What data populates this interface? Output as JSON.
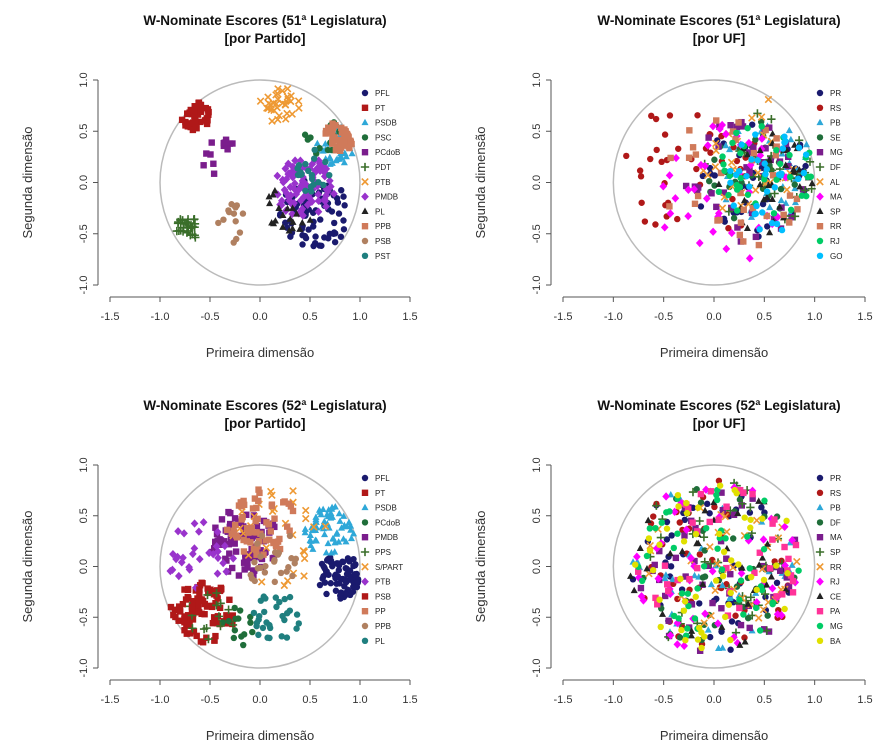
{
  "colors": {
    "palette": [
      "#1a1a6e",
      "#b01818",
      "#2ea8d8",
      "#1f6e3a",
      "#7a1d8c",
      "#3a6e2a",
      "#ee9933",
      "#9933cc",
      "#222222",
      "#d07a5a",
      "#b08060",
      "#1f7f7f",
      "#e0b000",
      "#ff00ff",
      "#00cc66",
      "#ff3399",
      "#00bfff",
      "#ff6600"
    ],
    "circle": "#bbbbbb"
  },
  "chart_data": [
    {
      "type": "scatter",
      "title": "W-Nominate Escores (51ª Legislatura)",
      "subtitle": "[por Partido]",
      "xlabel": "Primeira dimensão",
      "ylabel": "Segunda dimensão",
      "xlim": [
        -1.5,
        1.5
      ],
      "ylim": [
        -1.0,
        1.0
      ],
      "xticks": [
        "-1.5",
        "-1.0",
        "-0.5",
        "0.0",
        "0.5",
        "1.0",
        "1.5"
      ],
      "yticks": [
        "-1.0",
        "-0.5",
        "0.0",
        "0.5",
        "1.0"
      ],
      "unit_circle": true,
      "legend": "right",
      "series": [
        {
          "name": "PFL",
          "marker": "circle",
          "color": "#1a1a6e",
          "cluster": {
            "cx": 0.55,
            "cy": -0.3,
            "r": 0.35,
            "n": 80
          }
        },
        {
          "name": "PT",
          "marker": "square",
          "color": "#b01818",
          "cluster": {
            "cx": -0.65,
            "cy": 0.65,
            "r": 0.15,
            "n": 45
          }
        },
        {
          "name": "PSDB",
          "marker": "triangle",
          "color": "#2ea8d8",
          "cluster": {
            "cx": 0.75,
            "cy": 0.35,
            "r": 0.2,
            "n": 45
          }
        },
        {
          "name": "PSC",
          "marker": "circle",
          "color": "#1f6e3a",
          "cluster": {
            "cx": 0.65,
            "cy": 0.45,
            "r": 0.2,
            "n": 14
          }
        },
        {
          "name": "PCdoB",
          "marker": "square",
          "color": "#7a1d8c",
          "cluster": {
            "cx": -0.4,
            "cy": 0.25,
            "r": 0.2,
            "n": 14
          }
        },
        {
          "name": "PDT",
          "marker": "plus",
          "color": "#3a6e2a",
          "cluster": {
            "cx": -0.72,
            "cy": -0.45,
            "r": 0.12,
            "n": 30
          }
        },
        {
          "name": "PTB",
          "marker": "x",
          "color": "#ee9933",
          "cluster": {
            "cx": 0.2,
            "cy": 0.75,
            "r": 0.2,
            "n": 32
          }
        },
        {
          "name": "PMDB",
          "marker": "diamond",
          "color": "#9933cc",
          "cluster": {
            "cx": 0.45,
            "cy": -0.05,
            "r": 0.3,
            "n": 95
          }
        },
        {
          "name": "PL",
          "marker": "triangle",
          "color": "#222222",
          "cluster": {
            "cx": 0.3,
            "cy": -0.25,
            "r": 0.25,
            "n": 20
          }
        },
        {
          "name": "PPB",
          "marker": "square",
          "color": "#d07a5a",
          "cluster": {
            "cx": 0.8,
            "cy": 0.45,
            "r": 0.15,
            "n": 45
          }
        },
        {
          "name": "PSB",
          "marker": "circle",
          "color": "#b08060",
          "cluster": {
            "cx": -0.3,
            "cy": -0.4,
            "r": 0.2,
            "n": 14
          }
        },
        {
          "name": "PST",
          "marker": "circle",
          "color": "#1f7f7f",
          "cluster": {
            "cx": 0.5,
            "cy": 0.1,
            "r": 0.25,
            "n": 20
          }
        }
      ]
    },
    {
      "type": "scatter",
      "title": "W-Nominate Escores (51ª Legislatura)",
      "subtitle": "[por UF]",
      "xlabel": "Primeira dimensão",
      "ylabel": "Segunda dimensão",
      "xlim": [
        -1.5,
        1.5
      ],
      "ylim": [
        -1.0,
        1.0
      ],
      "xticks": [
        "-1.5",
        "-1.0",
        "-0.5",
        "0.0",
        "0.5",
        "1.0",
        "1.5"
      ],
      "yticks": [
        "-1.0",
        "-0.5",
        "0.0",
        "0.5",
        "1.0"
      ],
      "unit_circle": true,
      "legend": "right",
      "series": [
        {
          "name": "PR",
          "marker": "circle",
          "color": "#1a1a6e",
          "cluster": {
            "cx": 0.4,
            "cy": 0.0,
            "r": 0.6,
            "n": 40
          }
        },
        {
          "name": "RS",
          "marker": "circle",
          "color": "#b01818",
          "cluster": {
            "cx": -0.2,
            "cy": 0.1,
            "r": 0.7,
            "n": 40
          }
        },
        {
          "name": "PB",
          "marker": "triangle",
          "color": "#2ea8d8",
          "cluster": {
            "cx": 0.5,
            "cy": 0.1,
            "r": 0.5,
            "n": 35
          }
        },
        {
          "name": "SE",
          "marker": "circle",
          "color": "#1f6e3a",
          "cluster": {
            "cx": 0.4,
            "cy": 0.1,
            "r": 0.5,
            "n": 30
          }
        },
        {
          "name": "MG",
          "marker": "square",
          "color": "#7a1d8c",
          "cluster": {
            "cx": 0.3,
            "cy": 0.0,
            "r": 0.6,
            "n": 40
          }
        },
        {
          "name": "DF",
          "marker": "plus",
          "color": "#3a6e2a",
          "cluster": {
            "cx": 0.4,
            "cy": 0.1,
            "r": 0.6,
            "n": 30
          }
        },
        {
          "name": "AL",
          "marker": "x",
          "color": "#ee9933",
          "cluster": {
            "cx": 0.3,
            "cy": 0.3,
            "r": 0.6,
            "n": 30
          }
        },
        {
          "name": "MA",
          "marker": "diamond",
          "color": "#ff00ff",
          "cluster": {
            "cx": 0.1,
            "cy": -0.1,
            "r": 0.7,
            "n": 40
          }
        },
        {
          "name": "SP",
          "marker": "triangle",
          "color": "#222222",
          "cluster": {
            "cx": 0.5,
            "cy": 0.0,
            "r": 0.5,
            "n": 35
          }
        },
        {
          "name": "RR",
          "marker": "square",
          "color": "#d07a5a",
          "cluster": {
            "cx": 0.2,
            "cy": 0.0,
            "r": 0.7,
            "n": 35
          }
        },
        {
          "name": "RJ",
          "marker": "circle",
          "color": "#00cc66",
          "cluster": {
            "cx": 0.5,
            "cy": 0.1,
            "r": 0.5,
            "n": 35
          }
        },
        {
          "name": "GO",
          "marker": "circle",
          "color": "#00bfff",
          "cluster": {
            "cx": 0.5,
            "cy": 0.0,
            "r": 0.5,
            "n": 35
          }
        }
      ]
    },
    {
      "type": "scatter",
      "title": "W-Nominate Escores (52ª Legislatura)",
      "subtitle": "[por Partido]",
      "xlabel": "Primeira dimensão",
      "ylabel": "Segunda dimensão",
      "xlim": [
        -1.5,
        1.5
      ],
      "ylim": [
        -1.0,
        1.0
      ],
      "xticks": [
        "-1.5",
        "-1.0",
        "-0.5",
        "0.0",
        "0.5",
        "1.0",
        "1.5"
      ],
      "yticks": [
        "-1.0",
        "-0.5",
        "0.0",
        "0.5",
        "1.0"
      ],
      "unit_circle": true,
      "legend": "right",
      "series": [
        {
          "name": "PFL",
          "marker": "circle",
          "color": "#1a1a6e",
          "cluster": {
            "cx": 0.8,
            "cy": -0.1,
            "r": 0.22,
            "n": 75
          }
        },
        {
          "name": "PT",
          "marker": "square",
          "color": "#b01818",
          "cluster": {
            "cx": -0.55,
            "cy": -0.45,
            "r": 0.3,
            "n": 75
          }
        },
        {
          "name": "PSDB",
          "marker": "triangle",
          "color": "#2ea8d8",
          "cluster": {
            "cx": 0.7,
            "cy": 0.35,
            "r": 0.25,
            "n": 60
          }
        },
        {
          "name": "PCdoB",
          "marker": "circle",
          "color": "#1f6e3a",
          "cluster": {
            "cx": -0.2,
            "cy": -0.6,
            "r": 0.2,
            "n": 14
          }
        },
        {
          "name": "PMDB",
          "marker": "square",
          "color": "#7a1d8c",
          "cluster": {
            "cx": -0.15,
            "cy": 0.25,
            "r": 0.35,
            "n": 80
          }
        },
        {
          "name": "PPS",
          "marker": "plus",
          "color": "#3a6e2a",
          "cluster": {
            "cx": -0.5,
            "cy": -0.5,
            "r": 0.25,
            "n": 14
          }
        },
        {
          "name": "S/PART",
          "marker": "x",
          "color": "#ee9933",
          "cluster": {
            "cx": 0.2,
            "cy": 0.3,
            "r": 0.5,
            "n": 30
          }
        },
        {
          "name": "PTB",
          "marker": "diamond",
          "color": "#9933cc",
          "cluster": {
            "cx": -0.6,
            "cy": 0.1,
            "r": 0.35,
            "n": 30
          }
        },
        {
          "name": "PSB",
          "marker": "square",
          "color": "#b01818",
          "cluster": {
            "cx": -0.7,
            "cy": -0.4,
            "r": 0.2,
            "n": 20
          }
        },
        {
          "name": "PP",
          "marker": "square",
          "color": "#d07a5a",
          "cluster": {
            "cx": 0.0,
            "cy": 0.45,
            "r": 0.35,
            "n": 60
          }
        },
        {
          "name": "PPB",
          "marker": "circle",
          "color": "#b08060",
          "cluster": {
            "cx": 0.1,
            "cy": 0.1,
            "r": 0.3,
            "n": 25
          }
        },
        {
          "name": "PL",
          "marker": "circle",
          "color": "#1f7f7f",
          "cluster": {
            "cx": 0.15,
            "cy": -0.5,
            "r": 0.25,
            "n": 30
          }
        }
      ]
    },
    {
      "type": "scatter",
      "title": "W-Nominate Escores (52ª Legislatura)",
      "subtitle": "[por UF]",
      "xlabel": "Primeira dimensão",
      "ylabel": "Segunda dimensão",
      "xlim": [
        -1.5,
        1.5
      ],
      "ylim": [
        -1.0,
        1.0
      ],
      "xticks": [
        "-1.5",
        "-1.0",
        "-0.5",
        "0.0",
        "0.5",
        "1.0",
        "1.5"
      ],
      "yticks": [
        "-1.0",
        "-0.5",
        "0.0",
        "0.5",
        "1.0"
      ],
      "unit_circle": true,
      "legend": "right",
      "series": [
        {
          "name": "PR",
          "marker": "circle",
          "color": "#1a1a6e",
          "cluster": {
            "cx": 0.0,
            "cy": 0.0,
            "r": 0.85,
            "n": 45
          }
        },
        {
          "name": "RS",
          "marker": "circle",
          "color": "#b01818",
          "cluster": {
            "cx": 0.0,
            "cy": 0.0,
            "r": 0.85,
            "n": 45
          }
        },
        {
          "name": "PB",
          "marker": "triangle",
          "color": "#2ea8d8",
          "cluster": {
            "cx": 0.0,
            "cy": 0.0,
            "r": 0.85,
            "n": 40
          }
        },
        {
          "name": "DF",
          "marker": "circle",
          "color": "#1f6e3a",
          "cluster": {
            "cx": 0.0,
            "cy": 0.0,
            "r": 0.85,
            "n": 35
          }
        },
        {
          "name": "MA",
          "marker": "square",
          "color": "#7a1d8c",
          "cluster": {
            "cx": 0.0,
            "cy": 0.0,
            "r": 0.85,
            "n": 45
          }
        },
        {
          "name": "SP",
          "marker": "plus",
          "color": "#3a6e2a",
          "cluster": {
            "cx": 0.0,
            "cy": 0.0,
            "r": 0.85,
            "n": 40
          }
        },
        {
          "name": "RR",
          "marker": "x",
          "color": "#ee9933",
          "cluster": {
            "cx": 0.0,
            "cy": 0.0,
            "r": 0.85,
            "n": 35
          }
        },
        {
          "name": "RJ",
          "marker": "diamond",
          "color": "#ff00ff",
          "cluster": {
            "cx": 0.0,
            "cy": 0.0,
            "r": 0.85,
            "n": 45
          }
        },
        {
          "name": "CE",
          "marker": "triangle",
          "color": "#222222",
          "cluster": {
            "cx": 0.0,
            "cy": 0.0,
            "r": 0.85,
            "n": 35
          }
        },
        {
          "name": "PA",
          "marker": "square",
          "color": "#ff3399",
          "cluster": {
            "cx": 0.0,
            "cy": 0.0,
            "r": 0.85,
            "n": 40
          }
        },
        {
          "name": "MG",
          "marker": "circle",
          "color": "#00cc66",
          "cluster": {
            "cx": 0.0,
            "cy": 0.0,
            "r": 0.85,
            "n": 45
          }
        },
        {
          "name": "BA",
          "marker": "circle",
          "color": "#e0e000",
          "cluster": {
            "cx": 0.0,
            "cy": 0.0,
            "r": 0.85,
            "n": 50
          }
        }
      ]
    }
  ]
}
